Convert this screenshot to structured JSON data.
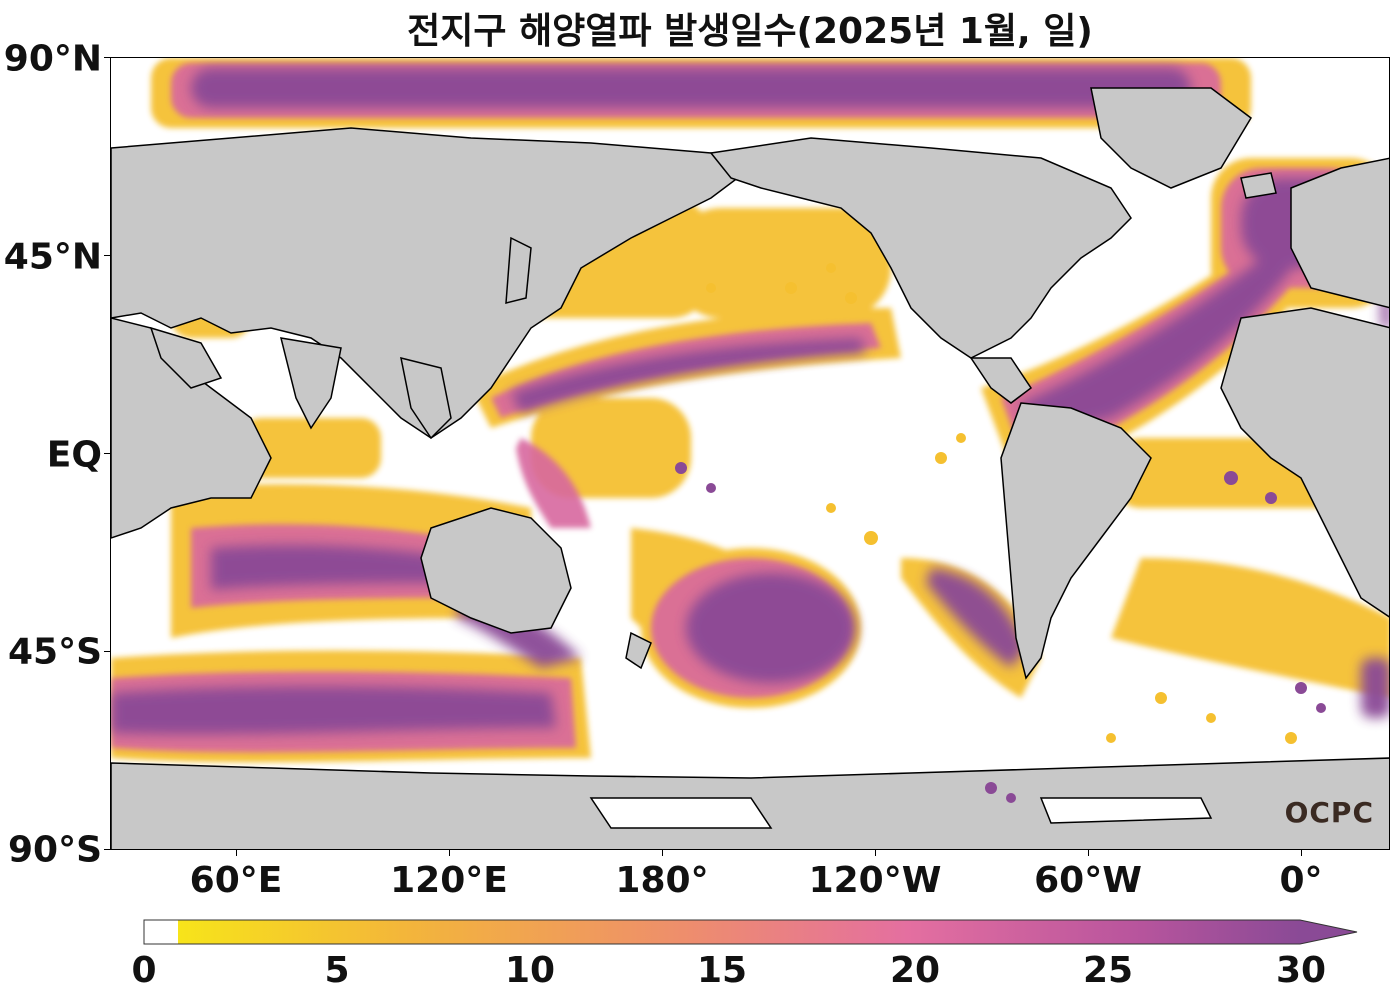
{
  "title": "전지구 해양열파 발생일수(2025년 1월, 일)",
  "watermark": "OCPC",
  "lat_labels": [
    "90°N",
    "45°N",
    "EQ",
    "45°S",
    "90°S"
  ],
  "lon_labels": [
    "60°E",
    "120°E",
    "180°",
    "120°W",
    "60°W",
    "0°"
  ],
  "colorbar": {
    "ticks": [
      "0",
      "5",
      "10",
      "15",
      "20",
      "25",
      "30"
    ],
    "min": 0,
    "max": 30,
    "extend": "max",
    "colors": [
      "#ffffff",
      "#f7e41a",
      "#f3b63a",
      "#ee8e6c",
      "#e46fa0",
      "#b9559d",
      "#8a4a96"
    ]
  },
  "map_colors": {
    "land": "#c8c8c8",
    "ocean": "#ffffff",
    "high": "#8a4a96",
    "mid": "#d8679f",
    "low": "#f5c030"
  }
}
